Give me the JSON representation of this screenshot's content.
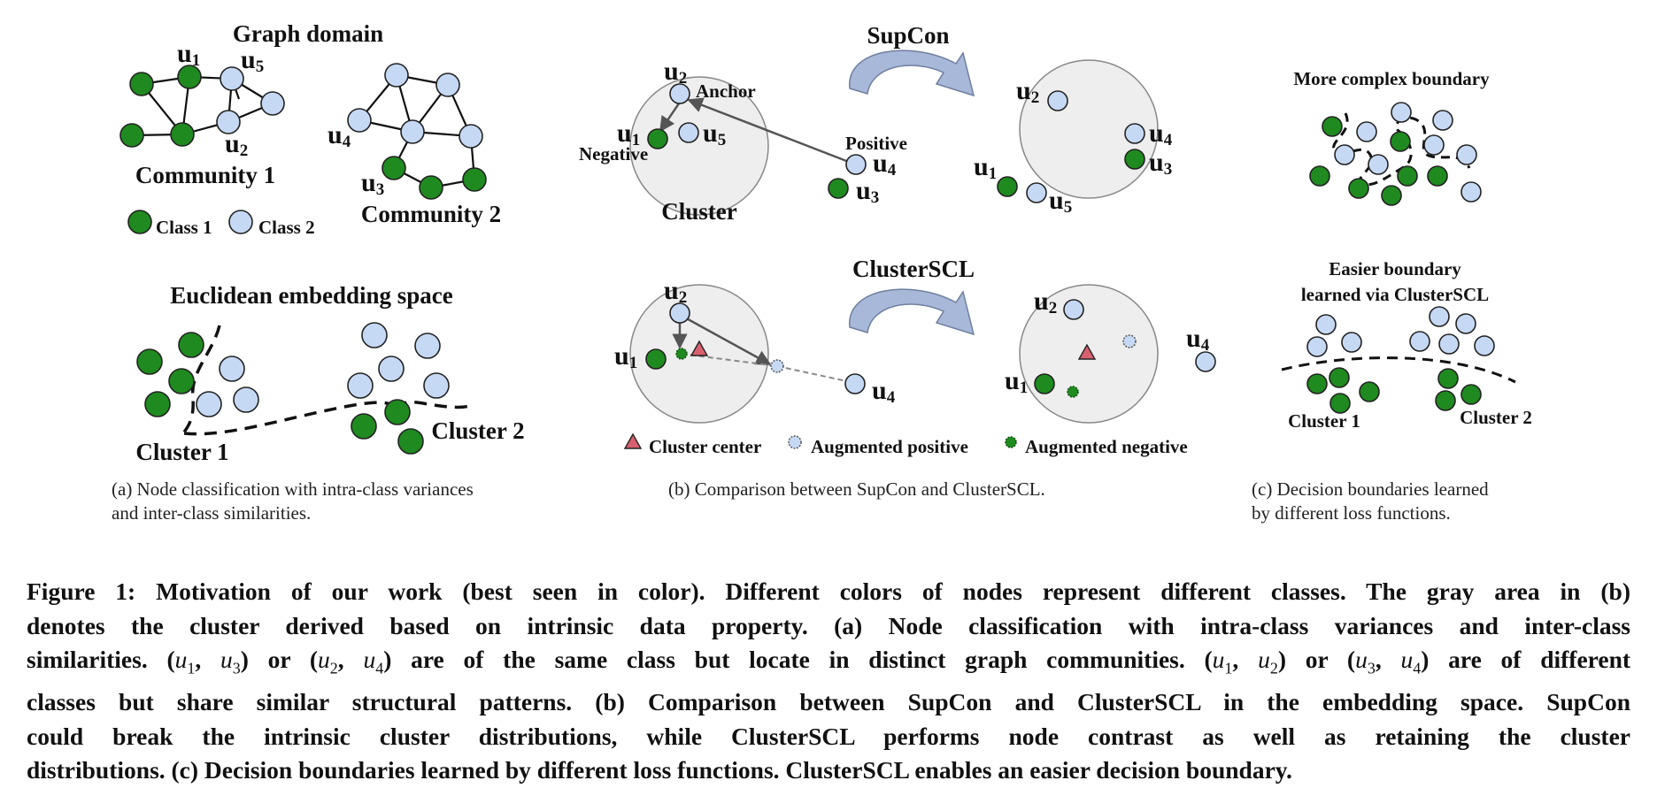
{
  "panel_a": {
    "graph_domain_title": "Graph domain",
    "community1_label": "Community 1",
    "community2_label": "Community 2",
    "legend_class1": "Class 1",
    "legend_class2": "Class 2",
    "embedding_title": "Euclidean embedding space",
    "cluster1_label": "Cluster 1",
    "cluster2_label": "Cluster 2",
    "nodes": {
      "u1": "u",
      "u1_sub": "1",
      "u2": "u",
      "u2_sub": "2",
      "u3": "u",
      "u3_sub": "3",
      "u4": "u",
      "u4_sub": "4",
      "u5": "u",
      "u5_sub": "5"
    },
    "caption_line1": "(a)  Node classification with intra-class variances",
    "caption_line2": "and inter-class similarities."
  },
  "panel_b": {
    "supcon_title": "SupCon",
    "clusterscl_title": "ClusterSCL",
    "anchor_label": "Anchor",
    "negative_label": "Negative",
    "positive_label": "Positive",
    "cluster_label": "Cluster",
    "legend_center": "Cluster center",
    "legend_aug_pos": "Augmented positive",
    "legend_aug_neg": "Augmented negative",
    "caption": "(b)  Comparison between SupCon and ClusterSCL."
  },
  "panel_c": {
    "complex_title": "More complex boundary",
    "easier_title_line1": "Easier boundary",
    "easier_title_line2": "learned via ClusterSCL",
    "cluster1_label": "Cluster 1",
    "cluster2_label": "Cluster 2",
    "caption_line1": "(c)  Decision boundaries learned",
    "caption_line2": "by different loss functions."
  },
  "caption": {
    "line1": "Figure 1: Motivation of our work (best seen in color). Different colors of nodes represent different classes. The gray area in (b)",
    "line2": "denotes the cluster derived based on intrinsic data property. (a) Node classification with intra-class variances and inter-class",
    "line3_a": "similarities. (",
    "line3_b": "u",
    "line3_c": "1",
    "line3_d": ", ",
    "line3_e": "u",
    "line3_f": "3",
    "line3_g": ") or (",
    "line3_h": "u",
    "line3_i": "2",
    "line3_j": ", ",
    "line3_k": "u",
    "line3_l": "4",
    "line3_m": ") are of the same class but locate in distinct graph communities. (",
    "line3_n": "u",
    "line3_o": "1",
    "line3_p": ", ",
    "line3_q": "u",
    "line3_r": "2",
    "line3_s": ") or (",
    "line3_t": "u",
    "line3_u": "3",
    "line3_v": ", ",
    "line3_w": "u",
    "line3_x": "4",
    "line3_y": ") are of different",
    "line4": "classes but share similar structural patterns. (b) Comparison between SupCon and ClusterSCL in the embedding space. SupCon",
    "line5": "could break the intrinsic cluster distributions, while ClusterSCL performs node contrast as well as retaining the cluster",
    "line6": "distributions. (c) Decision boundaries learned by different loss functions. ClusterSCL enables an easier decision boundary."
  },
  "colors": {
    "class1": "#1f8a1f",
    "class2": "#c6d9f4",
    "node_stroke": "#222222",
    "cluster_fill": "#eeeeee",
    "cluster_center": "#d9606e",
    "arrow_fill": "#a8b8d8"
  }
}
